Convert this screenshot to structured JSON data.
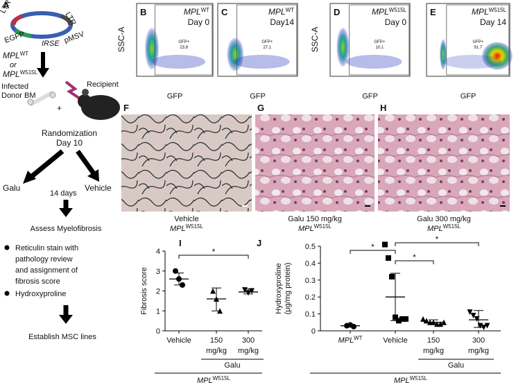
{
  "schematic": {
    "label": "A",
    "vector": [
      "LTR",
      "LTR",
      "EGFP",
      "IRSE",
      "pMSV"
    ],
    "construct": [
      {
        "base": "MPL",
        "sup": "WT"
      },
      "or",
      {
        "base": "MPL",
        "sup": "W515L"
      }
    ],
    "donor": [
      "Infected",
      "Donor BM"
    ],
    "plus": "+",
    "recipient": "Recipient",
    "randomization": [
      "Randomization",
      "Day 10"
    ],
    "arms": [
      "Galu",
      "Vehicle"
    ],
    "duration": "14 days",
    "assess": "Assess Myelofibrosis",
    "bullets": [
      [
        "Reticulin stain with",
        "pathology review",
        "and assignment of",
        "fibrosis score"
      ],
      [
        "Hydroxyproline"
      ]
    ],
    "final": "Establish MSC lines"
  },
  "flow": {
    "y_label": "SSC-A",
    "x_label": "GFP",
    "gate": "GFP+",
    "panels": [
      {
        "label": "B",
        "genotype": {
          "base": "MPL",
          "sup": "WT"
        },
        "day": "Day 0",
        "gfp": 23.8
      },
      {
        "label": "C",
        "genotype": {
          "base": "MPL",
          "sup": "WT"
        },
        "day": "Day14",
        "gfp": 27.1
      },
      {
        "label": "D",
        "genotype": {
          "base": "MPL",
          "sup": "W515L"
        },
        "day": "Day 0",
        "gfp": 10.1
      },
      {
        "label": "E",
        "genotype": {
          "base": "MPL",
          "sup": "W515L"
        },
        "day": "Day 14",
        "gfp": 91.7
      }
    ]
  },
  "histology": [
    {
      "label": "F",
      "caption": "Vehicle",
      "genotype": {
        "base": "MPL",
        "sup": "W515L"
      }
    },
    {
      "label": "G",
      "caption": "Galu 150 mg/kg",
      "genotype": {
        "base": "MPL",
        "sup": "W515L"
      }
    },
    {
      "label": "H",
      "caption": "Galu 300 mg/kg",
      "genotype": {
        "base": "MPL",
        "sup": "W515L"
      }
    }
  ],
  "chart_data": [
    {
      "type": "dot",
      "label": "I",
      "y_label": "Fibrosis score",
      "ylim": [
        0,
        4
      ],
      "yticks": [
        0,
        1,
        2,
        3,
        4
      ],
      "groups": [
        {
          "category": "Vehicle",
          "marker": "circle",
          "points": [
            3.0,
            2.6,
            2.3
          ],
          "mean": 2.6,
          "error": [
            2.3,
            2.9
          ]
        },
        {
          "category": [
            "150",
            "mg/kg"
          ],
          "marker": "triangle",
          "points": [
            2.0,
            1.6,
            1.0
          ],
          "mean": 1.6,
          "error": [
            1.0,
            2.15
          ]
        },
        {
          "category": [
            "300",
            "mg/kg"
          ],
          "marker": "triangle-down",
          "points": [
            2.05,
            1.9,
            2.0
          ],
          "mean": 1.95,
          "error": [
            1.85,
            2.1
          ]
        }
      ],
      "significance": [
        {
          "groups": [
            0,
            2
          ],
          "label": "*"
        }
      ],
      "group_label": "Galu",
      "genotype": {
        "base": "MPL",
        "sup": "W515L"
      }
    },
    {
      "type": "dot",
      "label": "J",
      "y_label": [
        "Hydroxyproline",
        "(μg/mg protein)"
      ],
      "ylim": [
        0,
        0.5
      ],
      "yticks": [
        0,
        0.1,
        0.2,
        0.3,
        0.4,
        0.5
      ],
      "groups": [
        {
          "category": {
            "base": "MPL",
            "sup": "WT"
          },
          "marker": "circle",
          "points": [
            0.03,
            0.035,
            0.025
          ],
          "mean": 0.03,
          "error": [
            0.025,
            0.037
          ]
        },
        {
          "category": "Vehicle",
          "marker": "square",
          "points": [
            0.51,
            0.43,
            0.32,
            0.08,
            0.06,
            0.07,
            0.07
          ],
          "mean": 0.2,
          "error": [
            0.06,
            0.34
          ]
        },
        {
          "category": [
            "150",
            "mg/kg"
          ],
          "marker": "triangle",
          "points": [
            0.07,
            0.06,
            0.05,
            0.05,
            0.04,
            0.04,
            0.05
          ],
          "mean": 0.05,
          "error": [
            0.04,
            0.065
          ]
        },
        {
          "category": [
            "300",
            "mg/kg"
          ],
          "marker": "triangle-down",
          "points": [
            0.11,
            0.09,
            0.07,
            0.03,
            0.02,
            0.03
          ],
          "mean": 0.065,
          "error": [
            0.02,
            0.12
          ]
        }
      ],
      "significance": [
        {
          "groups": [
            0,
            1
          ],
          "label": "*"
        },
        {
          "groups": [
            1,
            2
          ],
          "label": "*"
        },
        {
          "groups": [
            1,
            3
          ],
          "label": "*"
        }
      ],
      "group_label": "Galu",
      "genotype": {
        "base": "MPL",
        "sup": "W515L"
      }
    }
  ]
}
